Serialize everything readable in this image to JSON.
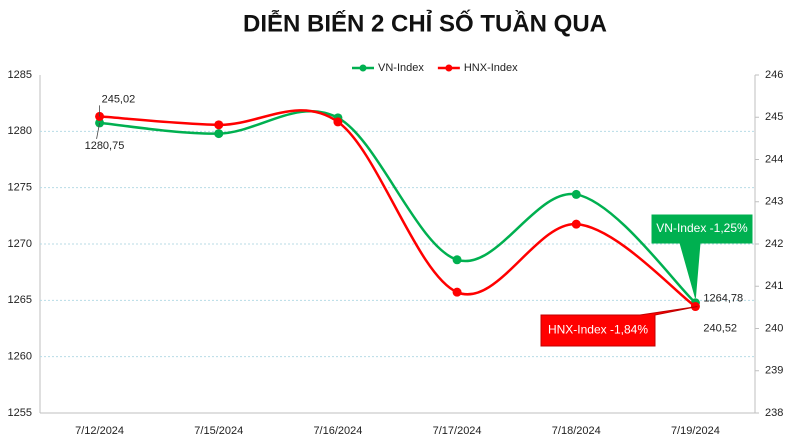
{
  "chart_data": {
    "type": "line",
    "title": "DIỄN BIẾN 2 CHỈ SỐ TUẦN QUA",
    "categories": [
      "7/12/2024",
      "7/15/2024",
      "7/16/2024",
      "7/17/2024",
      "7/18/2024",
      "7/19/2024"
    ],
    "series": [
      {
        "name": "VN-Index",
        "color": "#00b050",
        "values": [
          1280.75,
          1279.8,
          1281.2,
          1268.6,
          1274.4,
          1264.78
        ],
        "value_labels": [
          "1280,75",
          null,
          null,
          null,
          null,
          "1264,78"
        ]
      },
      {
        "name": "HNX-Index",
        "color": "#ff0000",
        "axis": "y2",
        "values": [
          245.02,
          244.82,
          244.89,
          240.86,
          242.47,
          240.52
        ],
        "value_labels": [
          "245,02",
          null,
          null,
          null,
          null,
          "240,52"
        ]
      }
    ],
    "ylim": [
      1255,
      1285
    ],
    "yticks": [
      1255,
      1260,
      1265,
      1270,
      1275,
      1280,
      1285
    ],
    "y2lim": [
      238,
      246
    ],
    "y2ticks": [
      238,
      239,
      240,
      241,
      242,
      243,
      244,
      245,
      246
    ],
    "grid": true,
    "legend": "top",
    "smooth": true,
    "annotations": [
      {
        "text": "VN-Index -1,25%",
        "color": "#00b050"
      },
      {
        "text": "HNX-Index -1,84%",
        "color": "#ff0000"
      }
    ]
  }
}
